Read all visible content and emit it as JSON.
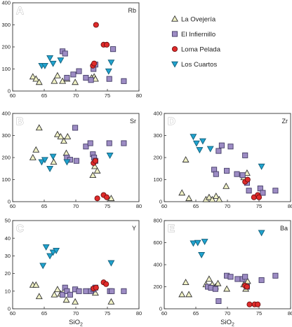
{
  "chart_data": {
    "type": "scatter",
    "legend": {
      "placement": "top-right",
      "entries": [
        {
          "series": "ovejeria",
          "label": "La Ovejería"
        },
        {
          "series": "infiernillo",
          "label": "El Infiernillo"
        },
        {
          "series": "pelada",
          "label": "Loma Pelada"
        },
        {
          "series": "cuartos",
          "label": "Los Cuartos"
        }
      ]
    },
    "series_style": {
      "ovejeria": {
        "marker": "triangle-up",
        "fill": "#f1f2c6",
        "stroke": "#333333"
      },
      "infiernillo": {
        "marker": "square",
        "fill": "#9d8cc4",
        "stroke": "#443c66"
      },
      "pelada": {
        "marker": "circle",
        "fill": "#e02a2a",
        "stroke": "#6e1010"
      },
      "cuartos": {
        "marker": "triangle-down",
        "fill": "#1fa3cf",
        "stroke": "#145f7a"
      }
    },
    "panels": [
      {
        "id": "A",
        "letter": "A",
        "element": "Rb",
        "xlabel": "",
        "xlim": [
          60,
          80
        ],
        "ylim": [
          0,
          400
        ],
        "xticks": [
          "60",
          "65",
          "70",
          "75",
          "80"
        ],
        "yticks": [
          "0",
          "100",
          "200",
          "300",
          "400"
        ],
        "series": {
          "ovejeria": [
            [
              63.2,
              65
            ],
            [
              63.7,
              55
            ],
            [
              64.2,
              40
            ],
            [
              66.6,
              45
            ],
            [
              67.1,
              70
            ],
            [
              67.9,
              45
            ],
            [
              68.6,
              55
            ],
            [
              69.9,
              40
            ],
            [
              72.5,
              60
            ],
            [
              72.9,
              65
            ],
            [
              73.1,
              55
            ]
          ],
          "infiernillo": [
            [
              67.9,
              180
            ],
            [
              68.3,
              170
            ],
            [
              68.6,
              60
            ],
            [
              69.6,
              75
            ],
            [
              70.5,
              90
            ],
            [
              71.6,
              60
            ],
            [
              72.4,
              50
            ],
            [
              72.8,
              100
            ],
            [
              73.1,
              120
            ],
            [
              75.3,
              55
            ],
            [
              75.9,
              190
            ],
            [
              77.6,
              45
            ]
          ],
          "pelada": [
            [
              72.7,
              115
            ],
            [
              72.9,
              125
            ],
            [
              73.2,
              300
            ],
            [
              74.4,
              210
            ],
            [
              74.9,
              210
            ]
          ],
          "cuartos": [
            [
              64.6,
              115
            ],
            [
              65.1,
              115
            ],
            [
              65.9,
              150
            ],
            [
              66.4,
              125
            ],
            [
              67.6,
              140
            ],
            [
              75.2,
              90
            ],
            [
              75.6,
              130
            ]
          ]
        }
      },
      {
        "id": "B",
        "letter": "B",
        "element": "Sr",
        "xlabel": "",
        "xlim": [
          60,
          80
        ],
        "ylim": [
          0,
          400
        ],
        "xticks": [
          "60",
          "65",
          "70",
          "75",
          "80"
        ],
        "yticks": [
          "0",
          "100",
          "200",
          "300",
          "400"
        ],
        "series": {
          "ovejeria": [
            [
              63.2,
              200
            ],
            [
              63.7,
              235
            ],
            [
              64.2,
              335
            ],
            [
              66.5,
              180
            ],
            [
              67.1,
              305
            ],
            [
              67.6,
              295
            ],
            [
              68.1,
              275
            ],
            [
              68.5,
              220
            ],
            [
              68.7,
              295
            ],
            [
              72.7,
              120
            ],
            [
              73.0,
              160
            ],
            [
              73.4,
              140
            ],
            [
              75.6,
              15
            ]
          ],
          "infiernillo": [
            [
              68.6,
              200
            ],
            [
              69.1,
              190
            ],
            [
              69.9,
              335
            ],
            [
              70.1,
              185
            ],
            [
              71.6,
              250
            ],
            [
              72.3,
              265
            ],
            [
              72.7,
              215
            ],
            [
              72.9,
              200
            ],
            [
              73.1,
              185
            ],
            [
              75.3,
              265
            ],
            [
              77.6,
              265
            ]
          ],
          "pelada": [
            [
              72.8,
              175
            ],
            [
              73.1,
              185
            ],
            [
              73.4,
              15
            ],
            [
              74.4,
              30
            ],
            [
              74.9,
              20
            ]
          ],
          "cuartos": [
            [
              64.6,
              180
            ],
            [
              65.1,
              190
            ],
            [
              65.9,
              150
            ],
            [
              66.4,
              205
            ],
            [
              68.6,
              180
            ],
            [
              75.4,
              210
            ]
          ]
        }
      },
      {
        "id": "D",
        "letter": "D",
        "element": "Zr",
        "xlabel": "",
        "xlim": [
          60,
          80
        ],
        "ylim": [
          0,
          400
        ],
        "xticks": [
          "60",
          "65",
          "70",
          "75",
          "80"
        ],
        "yticks": [
          "0",
          "100",
          "200",
          "300",
          "400"
        ],
        "series": {
          "ovejeria": [
            [
              62.8,
              40
            ],
            [
              63.4,
              190
            ],
            [
              63.9,
              15
            ],
            [
              66.6,
              10
            ],
            [
              67.1,
              20
            ],
            [
              67.6,
              10
            ],
            [
              68.2,
              25
            ],
            [
              68.7,
              10
            ],
            [
              69.8,
              70
            ],
            [
              72.6,
              110
            ],
            [
              73.1,
              130
            ]
          ],
          "infiernillo": [
            [
              67.9,
              145
            ],
            [
              68.2,
              125
            ],
            [
              68.6,
              230
            ],
            [
              69.1,
              255
            ],
            [
              69.9,
              140
            ],
            [
              70.5,
              250
            ],
            [
              71.5,
              125
            ],
            [
              72.4,
              120
            ],
            [
              72.8,
              210
            ],
            [
              73.1,
              85
            ],
            [
              73.4,
              50
            ],
            [
              75.2,
              60
            ],
            [
              75.6,
              40
            ],
            [
              77.6,
              50
            ]
          ],
          "pelada": [
            [
              72.8,
              90
            ],
            [
              73.2,
              100
            ],
            [
              74.2,
              20
            ],
            [
              74.8,
              30
            ],
            [
              75.0,
              20
            ]
          ],
          "cuartos": [
            [
              64.6,
              295
            ],
            [
              65.1,
              265
            ],
            [
              65.6,
              235
            ],
            [
              66.1,
              275
            ],
            [
              67.3,
              240
            ],
            [
              75.4,
              160
            ]
          ]
        }
      },
      {
        "id": "C",
        "letter": "C",
        "element": "Y",
        "xlabel": "SiO2",
        "xlim": [
          60,
          80
        ],
        "ylim": [
          0,
          50
        ],
        "xticks": [
          "60",
          "65",
          "70",
          "75",
          "80"
        ],
        "yticks": [
          "0",
          "10",
          "20",
          "30",
          "40",
          "50"
        ],
        "series": {
          "ovejeria": [
            [
              63.2,
              13.5
            ],
            [
              63.7,
              13.5
            ],
            [
              64.2,
              7
            ],
            [
              66.6,
              8
            ],
            [
              67.1,
              11
            ],
            [
              67.6,
              8.5
            ],
            [
              68.1,
              10
            ],
            [
              68.5,
              5
            ],
            [
              69.9,
              4
            ],
            [
              72.6,
              11
            ],
            [
              73.1,
              9
            ],
            [
              75.6,
              4
            ]
          ],
          "infiernillo": [
            [
              67.9,
              8
            ],
            [
              68.3,
              12
            ],
            [
              68.6,
              10
            ],
            [
              69.1,
              8
            ],
            [
              69.9,
              11
            ],
            [
              70.5,
              10
            ],
            [
              71.6,
              10
            ],
            [
              72.4,
              10
            ],
            [
              72.8,
              11
            ],
            [
              73.1,
              12
            ],
            [
              75.4,
              10
            ],
            [
              75.7,
              10
            ],
            [
              77.6,
              10
            ]
          ],
          "pelada": [
            [
              72.8,
              11.5
            ],
            [
              73.2,
              12
            ],
            [
              74.4,
              15
            ],
            [
              74.8,
              14
            ]
          ],
          "cuartos": [
            [
              64.8,
              24.5
            ],
            [
              65.3,
              35
            ],
            [
              65.9,
              30
            ],
            [
              66.4,
              32
            ],
            [
              66.9,
              33
            ],
            [
              75.6,
              26
            ]
          ]
        }
      },
      {
        "id": "E",
        "letter": "E",
        "element": "Ba",
        "xlabel": "SiO2",
        "xlim": [
          60,
          80
        ],
        "ylim": [
          0,
          800
        ],
        "xticks": [
          "60",
          "65",
          "70",
          "75",
          "80"
        ],
        "yticks": [
          "0",
          "200",
          "400",
          "600",
          "800"
        ],
        "series": {
          "ovejeria": [
            [
              62.8,
              130
            ],
            [
              63.4,
              240
            ],
            [
              63.9,
              130
            ],
            [
              66.6,
              220
            ],
            [
              67.1,
              270
            ],
            [
              67.6,
              220
            ],
            [
              68.1,
              200
            ],
            [
              68.5,
              230
            ],
            [
              69.9,
              180
            ],
            [
              72.6,
              220
            ],
            [
              72.9,
              180
            ],
            [
              73.2,
              250
            ]
          ],
          "infiernillo": [
            [
              66.9,
              200
            ],
            [
              67.4,
              190
            ],
            [
              68.1,
              180
            ],
            [
              68.6,
              70
            ],
            [
              69.9,
              300
            ],
            [
              70.5,
              290
            ],
            [
              71.6,
              270
            ],
            [
              72.4,
              270
            ],
            [
              72.8,
              290
            ],
            [
              73.1,
              200
            ],
            [
              75.4,
              260
            ],
            [
              77.6,
              300
            ]
          ],
          "pelada": [
            [
              72.8,
              210
            ],
            [
              73.1,
              200
            ],
            [
              73.5,
              40
            ],
            [
              74.3,
              40
            ],
            [
              74.8,
              40
            ]
          ],
          "cuartos": [
            [
              64.6,
              595
            ],
            [
              65.3,
              600
            ],
            [
              65.9,
              490
            ],
            [
              66.4,
              610
            ],
            [
              75.4,
              690
            ]
          ]
        }
      }
    ]
  }
}
